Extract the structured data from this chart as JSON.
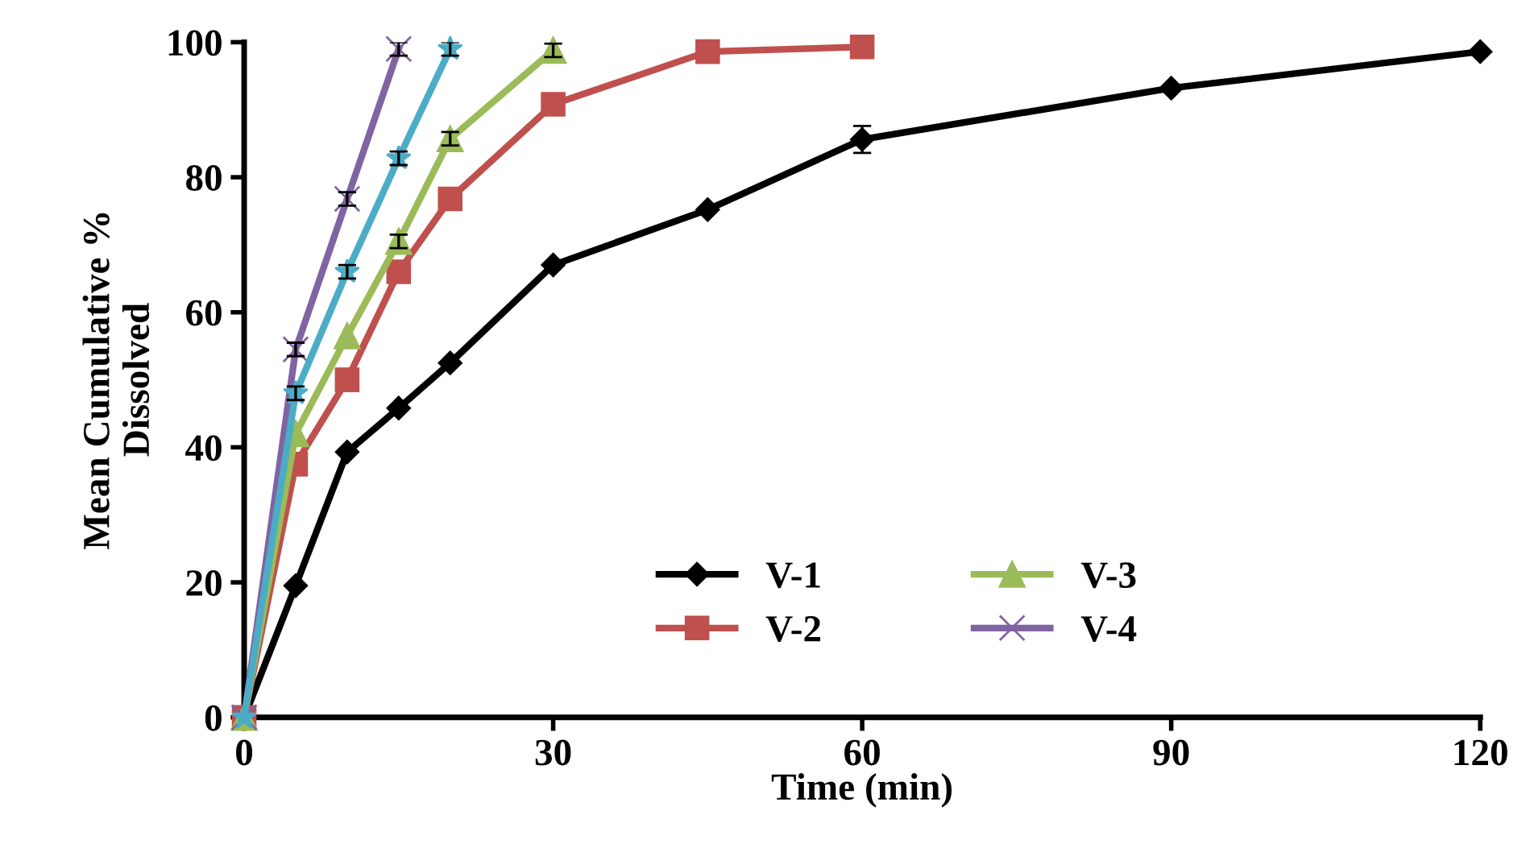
{
  "chart_data": {
    "type": "line",
    "xlabel": "Time (min)",
    "ylabel": "Mean Cumulative %\nDissolved",
    "xlim": [
      0,
      120
    ],
    "xticks": [
      0,
      30,
      60,
      90,
      120
    ],
    "ylim": [
      0,
      100
    ],
    "yticks": [
      0,
      20,
      40,
      60,
      80,
      100
    ],
    "grid": false,
    "legend": "bottom right",
    "series": [
      {
        "name": "V-1",
        "color": "#000000",
        "marker": "diamond",
        "x": [
          0,
          5,
          10,
          15,
          20,
          30,
          45,
          60,
          90,
          120
        ],
        "values": [
          0,
          19.5,
          39.3,
          45.8,
          52.5,
          67,
          75.2,
          85.6,
          93.2,
          98.6
        ],
        "errors": [
          null,
          null,
          null,
          null,
          null,
          null,
          null,
          2,
          null,
          null
        ]
      },
      {
        "name": "V-2",
        "color": "#c0504d",
        "marker": "square",
        "x": [
          0,
          5,
          10,
          15,
          20,
          30,
          45,
          60
        ],
        "values": [
          0,
          37.5,
          50,
          66,
          76.8,
          90.8,
          98.6,
          99.3
        ]
      },
      {
        "name": "V-3",
        "color": "#9bbb59",
        "marker": "triangle",
        "x": [
          0,
          5,
          10,
          15,
          20,
          30
        ],
        "values": [
          0,
          42,
          56.5,
          70.5,
          85.7,
          98.8
        ],
        "errors": [
          null,
          null,
          null,
          1,
          1,
          1
        ]
      },
      {
        "name": "V-4",
        "color": "#8064a2",
        "marker": "cross",
        "x": [
          0,
          5,
          10,
          15
        ],
        "values": [
          0,
          54.5,
          76.8,
          99
        ],
        "errors": [
          null,
          1,
          1,
          1
        ]
      },
      {
        "color": "#4bacc6",
        "marker": "star",
        "x": [
          0,
          5,
          10,
          15,
          20
        ],
        "values": [
          0,
          48,
          66,
          82.8,
          99
        ],
        "errors": [
          null,
          1,
          1,
          1,
          1
        ]
      }
    ]
  }
}
